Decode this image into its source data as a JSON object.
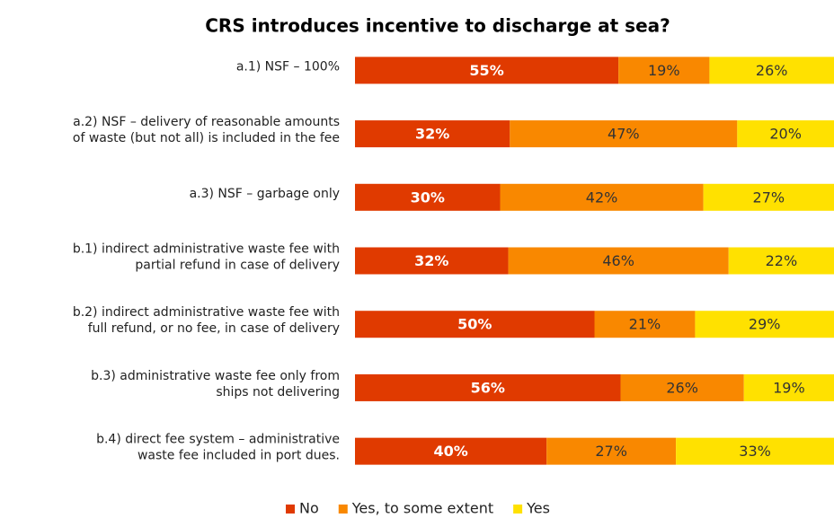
{
  "chart_data": {
    "type": "bar",
    "orientation": "horizontal",
    "stacked": true,
    "title": "CRS introduces incentive to discharge at sea?",
    "categories": [
      [
        "a.1) NSF – 100%"
      ],
      [
        "a.2) NSF – delivery of reasonable amounts",
        "of waste (but not all) is included in the fee"
      ],
      [
        "a.3) NSF – garbage only"
      ],
      [
        "b.1) indirect administrative waste fee with",
        "partial refund in case of delivery"
      ],
      [
        "b.2) indirect administrative waste fee with",
        "full refund, or no fee, in case of delivery"
      ],
      [
        "b.3) administrative waste fee only from",
        "ships not delivering"
      ],
      [
        "b.4) direct fee system – administrative",
        "waste fee included in port dues."
      ]
    ],
    "series": [
      {
        "name": "No",
        "color": "#e03a00",
        "label_color": "#ffffff",
        "values": [
          55,
          32,
          30,
          32,
          50,
          56,
          40
        ],
        "value_labels": [
          "55%",
          "32%",
          "30%",
          "32%",
          "50%",
          "56%",
          "40%"
        ]
      },
      {
        "name": "Yes, to some extent",
        "color": "#f98800",
        "label_color": "#333333",
        "values": [
          19,
          47,
          42,
          46,
          21,
          26,
          27
        ],
        "value_labels": [
          "19%",
          "47%",
          "42%",
          "46%",
          "21%",
          "26%",
          "27%"
        ]
      },
      {
        "name": "Yes",
        "color": "#ffe100",
        "label_color": "#333333",
        "values": [
          26,
          20,
          27,
          22,
          29,
          19,
          33
        ],
        "value_labels": [
          "26%",
          "20%",
          "27%",
          "22%",
          "29%",
          "19%",
          "33%"
        ]
      }
    ],
    "legend": "bottom"
  }
}
